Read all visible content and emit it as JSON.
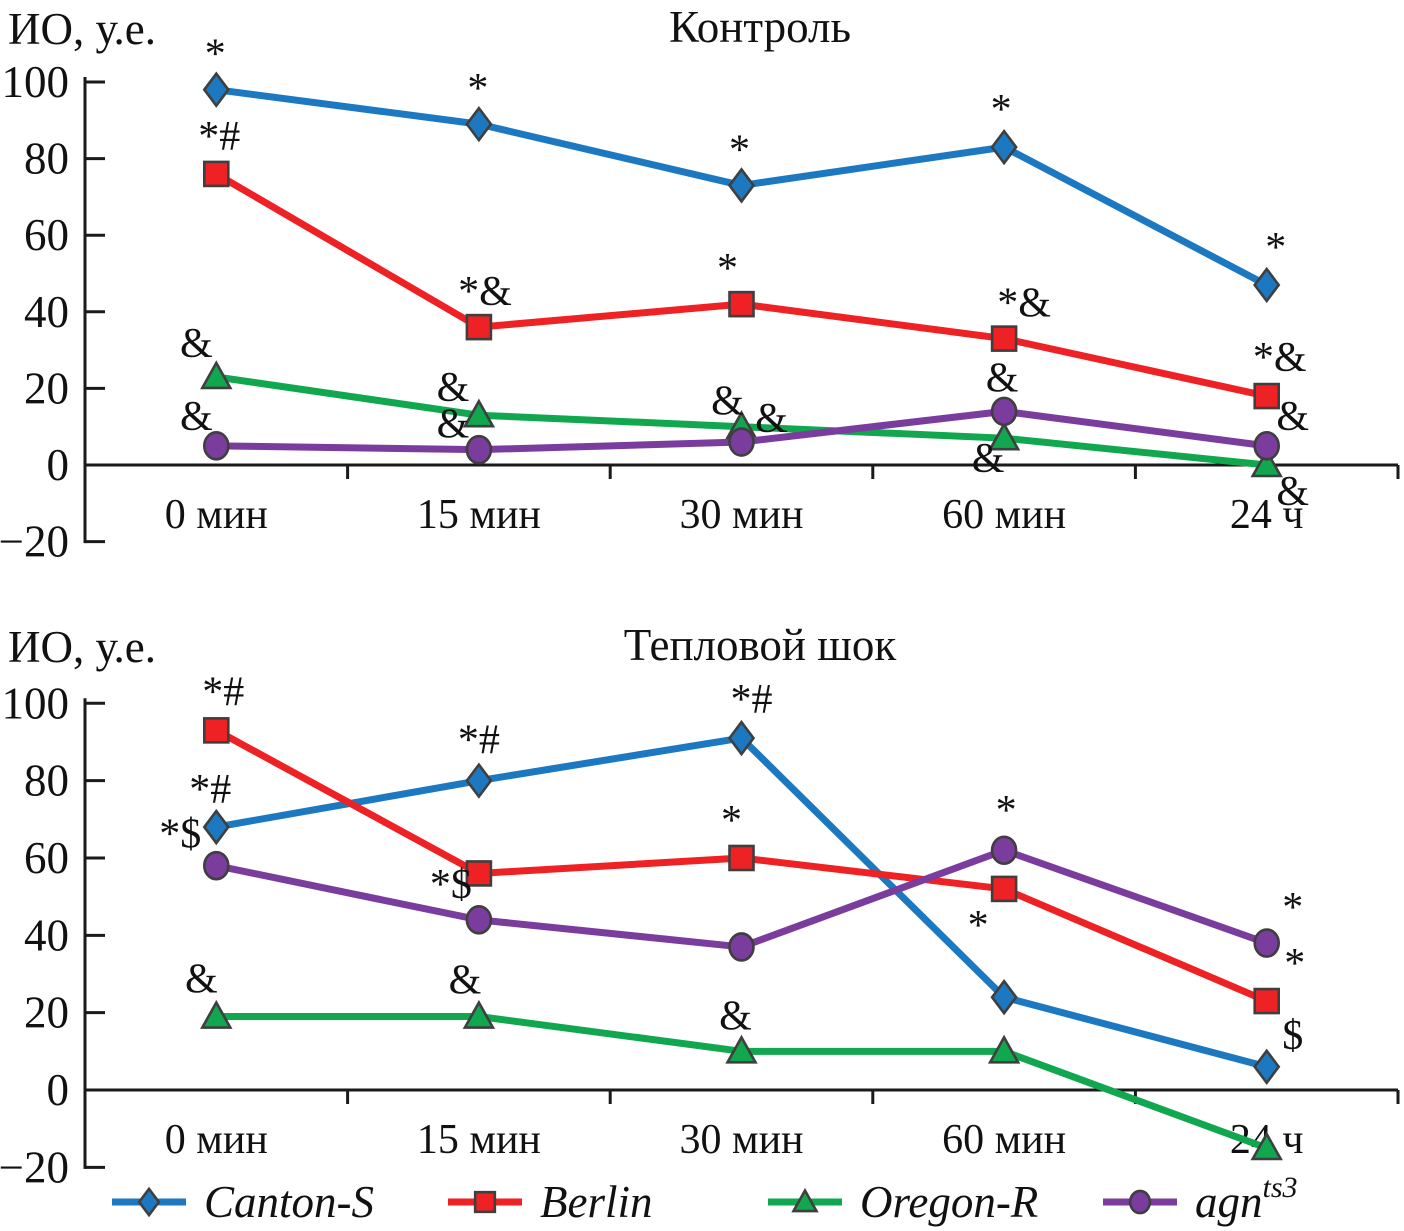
{
  "page": {
    "background": "#ffffff"
  },
  "colors": {
    "canton_s": "#1c79c1",
    "berlin": "#ee2224",
    "oregon_r": "#11a74f",
    "agn_ts3": "#7a3c9d",
    "axis": "#1a1a1a"
  },
  "chart_data": [
    {
      "type": "line",
      "title": "Контроль",
      "ylabel": "ИО, у.е.",
      "categories": [
        "0 мин",
        "15 мин",
        "30 мин",
        "60 мин",
        "24 ч"
      ],
      "ylim": [
        -20,
        100
      ],
      "yticks": [
        100,
        80,
        60,
        40,
        20,
        0,
        -20
      ],
      "grid": false,
      "series": [
        {
          "name": "Canton-S",
          "color": "#1c79c1",
          "marker": "diamond",
          "values": [
            98,
            89,
            73,
            83,
            47
          ],
          "annotations": [
            {
              "t": "*",
              "dx": -1,
              "dy": -22
            },
            {
              "t": "*",
              "dx": -1,
              "dy": -22
            },
            {
              "t": "*",
              "dx": -2,
              "dy": -22
            },
            {
              "t": "*",
              "dx": -3,
              "dy": -24
            },
            {
              "t": "*",
              "dx": 9,
              "dy": -24
            }
          ]
        },
        {
          "name": "Berlin",
          "color": "#ee2224",
          "marker": "square",
          "values": [
            76,
            36,
            42,
            33,
            18
          ],
          "annotations": [
            {
              "t": "*#",
              "dx": 3,
              "dy": -24
            },
            {
              "t": "*&",
              "dx": 6,
              "dy": -22
            },
            {
              "t": "*",
              "dx": -14,
              "dy": -22
            },
            {
              "t": "*&",
              "dx": 20,
              "dy": -22
            },
            {
              "t": "*&",
              "dx": 13,
              "dy": -25
            }
          ]
        },
        {
          "name": "Oregon-R",
          "color": "#11a74f",
          "marker": "triangle",
          "values": [
            23,
            13,
            10,
            7,
            0
          ],
          "annotations": [
            {
              "t": "&",
              "dx": -20,
              "dy": -20
            },
            {
              "t": "&",
              "dx": -26,
              "dy": -14
            },
            {
              "t": "&",
              "dx": -14,
              "dy": -12
            },
            {
              "t": "&",
              "dx": -16,
              "dy": 34
            },
            {
              "t": "&",
              "dx": 26,
              "dy": 40
            }
          ]
        },
        {
          "name": "agn-ts3",
          "color": "#7a3c9d",
          "marker": "circle",
          "values": [
            5,
            4,
            6,
            14,
            5
          ],
          "annotations": [
            {
              "t": "&",
              "dx": -20,
              "dy": -16
            },
            {
              "t": "&",
              "dx": -26,
              "dy": -12
            },
            {
              "t": "&",
              "dx": 30,
              "dy": -10
            },
            {
              "t": "&",
              "dx": -2,
              "dy": -20
            },
            {
              "t": "&",
              "dx": 26,
              "dy": -16
            }
          ]
        }
      ]
    },
    {
      "type": "line",
      "title": "Тепловой шок",
      "ylabel": "ИО, у.е.",
      "categories": [
        "0 мин",
        "15 мин",
        "30 мин",
        "60 мин",
        "24 ч"
      ],
      "ylim": [
        -20,
        100
      ],
      "yticks": [
        100,
        80,
        60,
        40,
        20,
        0,
        -20
      ],
      "grid": false,
      "series": [
        {
          "name": "Canton-S",
          "color": "#1c79c1",
          "marker": "diamond",
          "values": [
            68,
            80,
            91,
            24,
            6
          ],
          "annotations": [
            {
              "t": "*#",
              "dx": -6,
              "dy": -24
            },
            {
              "t": "*#",
              "dx": 0,
              "dy": -27
            },
            {
              "t": "*#",
              "dx": 10,
              "dy": -25
            },
            null,
            {
              "t": "$",
              "dx": 26,
              "dy": -18
            }
          ]
        },
        {
          "name": "Berlin",
          "color": "#ee2224",
          "marker": "square",
          "values": [
            93,
            56,
            60,
            52,
            23
          ],
          "annotations": [
            {
              "t": "*#",
              "dx": 7,
              "dy": -25
            },
            null,
            {
              "t": "*",
              "dx": -10,
              "dy": -24
            },
            {
              "t": "*",
              "dx": -26,
              "dy": 50
            },
            {
              "t": "*",
              "dx": 28,
              "dy": -24
            }
          ]
        },
        {
          "name": "Oregon-R",
          "color": "#11a74f",
          "marker": "triangle",
          "values": [
            19,
            19,
            10,
            10,
            -15
          ],
          "annotations": [
            {
              "t": "&",
              "dx": -15,
              "dy": -24
            },
            {
              "t": "&",
              "dx": -14,
              "dy": -23
            },
            {
              "t": "&",
              "dx": -6,
              "dy": -22
            },
            null,
            null
          ]
        },
        {
          "name": "agn-ts3",
          "color": "#7a3c9d",
          "marker": "circle",
          "values": [
            58,
            44,
            37,
            62,
            38
          ],
          "annotations": [
            {
              "t": "*$",
              "dx": -36,
              "dy": -18
            },
            {
              "t": "*$",
              "dx": -28,
              "dy": -22
            },
            null,
            {
              "t": "*",
              "dx": 2,
              "dy": -26
            },
            {
              "t": "*",
              "dx": 26,
              "dy": -22
            }
          ]
        }
      ]
    }
  ],
  "legend": {
    "items": [
      {
        "label": "Canton-S",
        "sup": "",
        "color": "#1c79c1",
        "marker": "diamond"
      },
      {
        "label": "Berlin",
        "sup": "",
        "color": "#ee2224",
        "marker": "square"
      },
      {
        "label": "Oregon-R",
        "sup": "",
        "color": "#11a74f",
        "marker": "triangle"
      },
      {
        "label": "agn",
        "sup": "ts3",
        "color": "#7a3c9d",
        "marker": "circle"
      }
    ]
  }
}
